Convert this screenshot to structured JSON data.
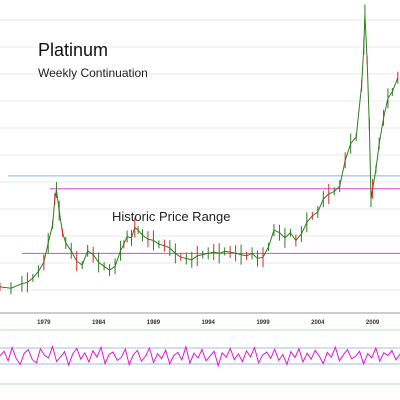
{
  "chart_data": {
    "type": "line",
    "title": "Platinum",
    "subtitle": "Weekly Continuation",
    "annotation": "Historic Price Range",
    "x_ticks": [
      "1979",
      "1984",
      "1989",
      "1994",
      "1999",
      "2004",
      "2009"
    ],
    "x_range": [
      1975,
      2011.5
    ],
    "y_range": [
      0,
      2300
    ],
    "grid": true,
    "price_series": {
      "name": "",
      "x": [
        1975.0,
        1976.0,
        1977.0,
        1977.5,
        1978.0,
        1978.5,
        1979.0,
        1979.4,
        1979.8,
        1980.0,
        1980.15,
        1980.4,
        1980.7,
        1981.0,
        1981.5,
        1982.0,
        1982.5,
        1983.0,
        1983.5,
        1984.0,
        1984.5,
        1985.0,
        1985.5,
        1986.0,
        1986.3,
        1986.6,
        1987.0,
        1987.3,
        1987.6,
        1988.0,
        1988.5,
        1989.0,
        1989.5,
        1990.0,
        1990.5,
        1991.0,
        1991.5,
        1992.0,
        1992.5,
        1993.0,
        1993.5,
        1994.0,
        1994.5,
        1995.0,
        1995.5,
        1996.0,
        1996.5,
        1997.0,
        1997.5,
        1998.0,
        1998.5,
        1999.0,
        1999.5,
        2000.0,
        2000.5,
        2001.0,
        2001.5,
        2002.0,
        2002.5,
        2003.0,
        2003.5,
        2004.0,
        2004.5,
        2005.0,
        2005.5,
        2006.0,
        2006.5,
        2007.0,
        2007.5,
        2008.0,
        2008.2,
        2008.3,
        2008.5,
        2008.7,
        2008.85,
        2009.0,
        2009.3,
        2009.6,
        2010.0,
        2010.4,
        2010.8,
        2011.3
      ],
      "y": [
        140,
        130,
        165,
        175,
        210,
        260,
        330,
        480,
        620,
        820,
        890,
        730,
        560,
        480,
        420,
        340,
        310,
        420,
        390,
        330,
        300,
        270,
        300,
        420,
        470,
        530,
        520,
        600,
        580,
        540,
        510,
        500,
        470,
        460,
        440,
        400,
        370,
        360,
        350,
        380,
        390,
        400,
        410,
        400,
        415,
        410,
        400,
        390,
        380,
        400,
        360,
        370,
        450,
        580,
        560,
        520,
        560,
        500,
        550,
        640,
        690,
        720,
        820,
        860,
        880,
        920,
        1120,
        1250,
        1300,
        1700,
        2000,
        2250,
        1900,
        1400,
        820,
        900,
        1050,
        1250,
        1450,
        1600,
        1650,
        1760
      ]
    },
    "price_levels": {
      "historic_range_low": 400,
      "historic_range_high": 900,
      "prior_high": 1000
    },
    "oscillator_series": {
      "name": "",
      "y_range": [
        0,
        100
      ],
      "reference_levels": [
        70,
        30
      ],
      "values": [
        50,
        62,
        38,
        71,
        44,
        29,
        57,
        66,
        41,
        33,
        68,
        52,
        45,
        74,
        36,
        48,
        61,
        27,
        55,
        69,
        42,
        58,
        35,
        63,
        47,
        72,
        31,
        54,
        60,
        39,
        46,
        67,
        28,
        53,
        64,
        37,
        49,
        70,
        34,
        56,
        43,
        65,
        30,
        51,
        59,
        40,
        73,
        32,
        57,
        45,
        66,
        38,
        50,
        62,
        26,
        58,
        47,
        69,
        41,
        55,
        36,
        63,
        48,
        71,
        33,
        52,
        60,
        44,
        67,
        39,
        54,
        29,
        61,
        46,
        68,
        35,
        57,
        42,
        64,
        50,
        31,
        59,
        47,
        72,
        38,
        53,
        66,
        43,
        49,
        62,
        30,
        56,
        45,
        70,
        37,
        58,
        51,
        64,
        40,
        55
      ]
    }
  }
}
